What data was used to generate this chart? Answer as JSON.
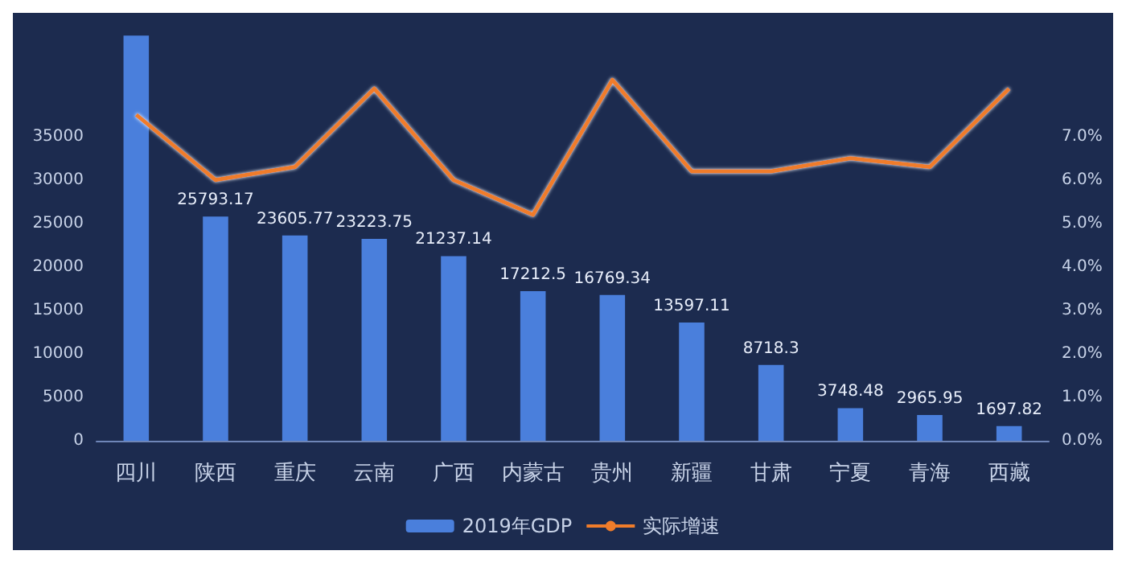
{
  "chart_data": {
    "type": "bar",
    "categories": [
      "四川",
      "陕西",
      "重庆",
      "云南",
      "广西",
      "内蒙古",
      "贵州",
      "新疆",
      "甘肃",
      "宁夏",
      "青海",
      "西藏"
    ],
    "series": [
      {
        "name": "2019年GDP",
        "color": "#4a7fdc",
        "values": [
          46600,
          25793.17,
          23605.77,
          23223.75,
          21237.14,
          17212.5,
          16769.34,
          13597.11,
          8718.3,
          3748.48,
          2965.95,
          1697.82
        ],
        "value_labels": [
          null,
          "25793.17",
          "23605.77",
          "23223.75",
          "21237.14",
          "17212.5",
          "16769.34",
          "13597.11",
          "8718.3",
          "3748.48",
          "2965.95",
          "1697.82"
        ]
      },
      {
        "name": "实际增速",
        "type": "line",
        "axis": "y2",
        "color": "#f07c2a",
        "values": [
          7.5,
          6.0,
          6.3,
          8.1,
          6.0,
          5.2,
          8.3,
          6.2,
          6.2,
          6.5,
          6.3,
          8.1
        ]
      }
    ],
    "ylim": [
      0,
      47000
    ],
    "yticks": [
      0,
      5000,
      10000,
      15000,
      20000,
      25000,
      30000,
      35000
    ],
    "y2lim": [
      0,
      9.4
    ],
    "y2ticks": [
      {
        "value": 0,
        "label": "0.0%"
      },
      {
        "value": 1,
        "label": "1.0%"
      },
      {
        "value": 2,
        "label": "2.0%"
      },
      {
        "value": 3,
        "label": "3.0%"
      },
      {
        "value": 4,
        "label": "4.0%"
      },
      {
        "value": 5,
        "label": "5.0%"
      },
      {
        "value": 6,
        "label": "6.0%"
      },
      {
        "value": 7,
        "label": "7.0%"
      }
    ],
    "grid": false,
    "legend": "bottom",
    "marker": "none",
    "line_style": "solid"
  }
}
